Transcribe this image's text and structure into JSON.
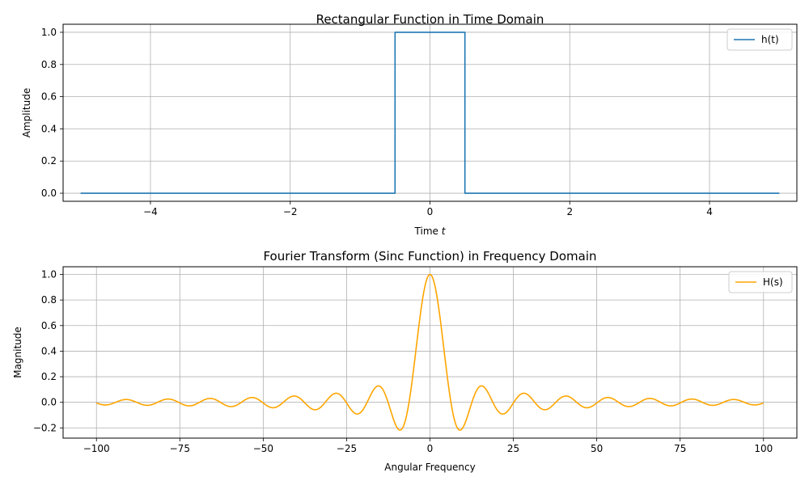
{
  "chart_data": [
    {
      "type": "line",
      "title": "Rectangular Function in Time Domain",
      "xlabel": "Time",
      "xlabel_var": "t",
      "ylabel": "Amplitude",
      "xlim": [
        -5.25,
        5.25
      ],
      "ylim": [
        -0.05,
        1.05
      ],
      "xticks": [
        -4,
        -2,
        0,
        2,
        4
      ],
      "xtick_labels": [
        "−4",
        "−2",
        "0",
        "2",
        "4"
      ],
      "yticks": [
        0.0,
        0.2,
        0.4,
        0.6,
        0.8,
        1.0
      ],
      "ytick_labels": [
        "0.0",
        "0.2",
        "0.4",
        "0.6",
        "0.8",
        "1.0"
      ],
      "grid": true,
      "legend_position": "top-right",
      "series": [
        {
          "name": "h(t)",
          "color": "#1f77b4",
          "x": [
            -5,
            -0.5,
            -0.5,
            0.5,
            0.5,
            5
          ],
          "y": [
            0,
            0,
            1,
            1,
            0,
            0
          ]
        }
      ]
    },
    {
      "type": "line",
      "title": "Fourier Transform (Sinc Function) in Frequency Domain",
      "xlabel": "Angular Frequency",
      "ylabel": "Magnitude",
      "xlim": [
        -110,
        110
      ],
      "ylim": [
        -0.28,
        1.06
      ],
      "xticks": [
        -100,
        -75,
        -50,
        -25,
        0,
        25,
        50,
        75,
        100
      ],
      "xtick_labels": [
        "−100",
        "−75",
        "−50",
        "−25",
        "0",
        "25",
        "50",
        "75",
        "100"
      ],
      "yticks": [
        -0.2,
        0.0,
        0.2,
        0.4,
        0.6,
        0.8,
        1.0
      ],
      "ytick_labels": [
        "−0.2",
        "0.0",
        "0.2",
        "0.4",
        "0.6",
        "0.8",
        "1.0"
      ],
      "grid": true,
      "legend_position": "top-right",
      "series": [
        {
          "name": "H(s)",
          "color": "#ffa500",
          "function": "sinc",
          "x_range": [
            -100,
            100
          ],
          "y_formula": "sin(pi*x/(2*pi)) / (pi*x/(2*pi)) i.e. sin(x/2)/(x/2)"
        }
      ]
    }
  ]
}
